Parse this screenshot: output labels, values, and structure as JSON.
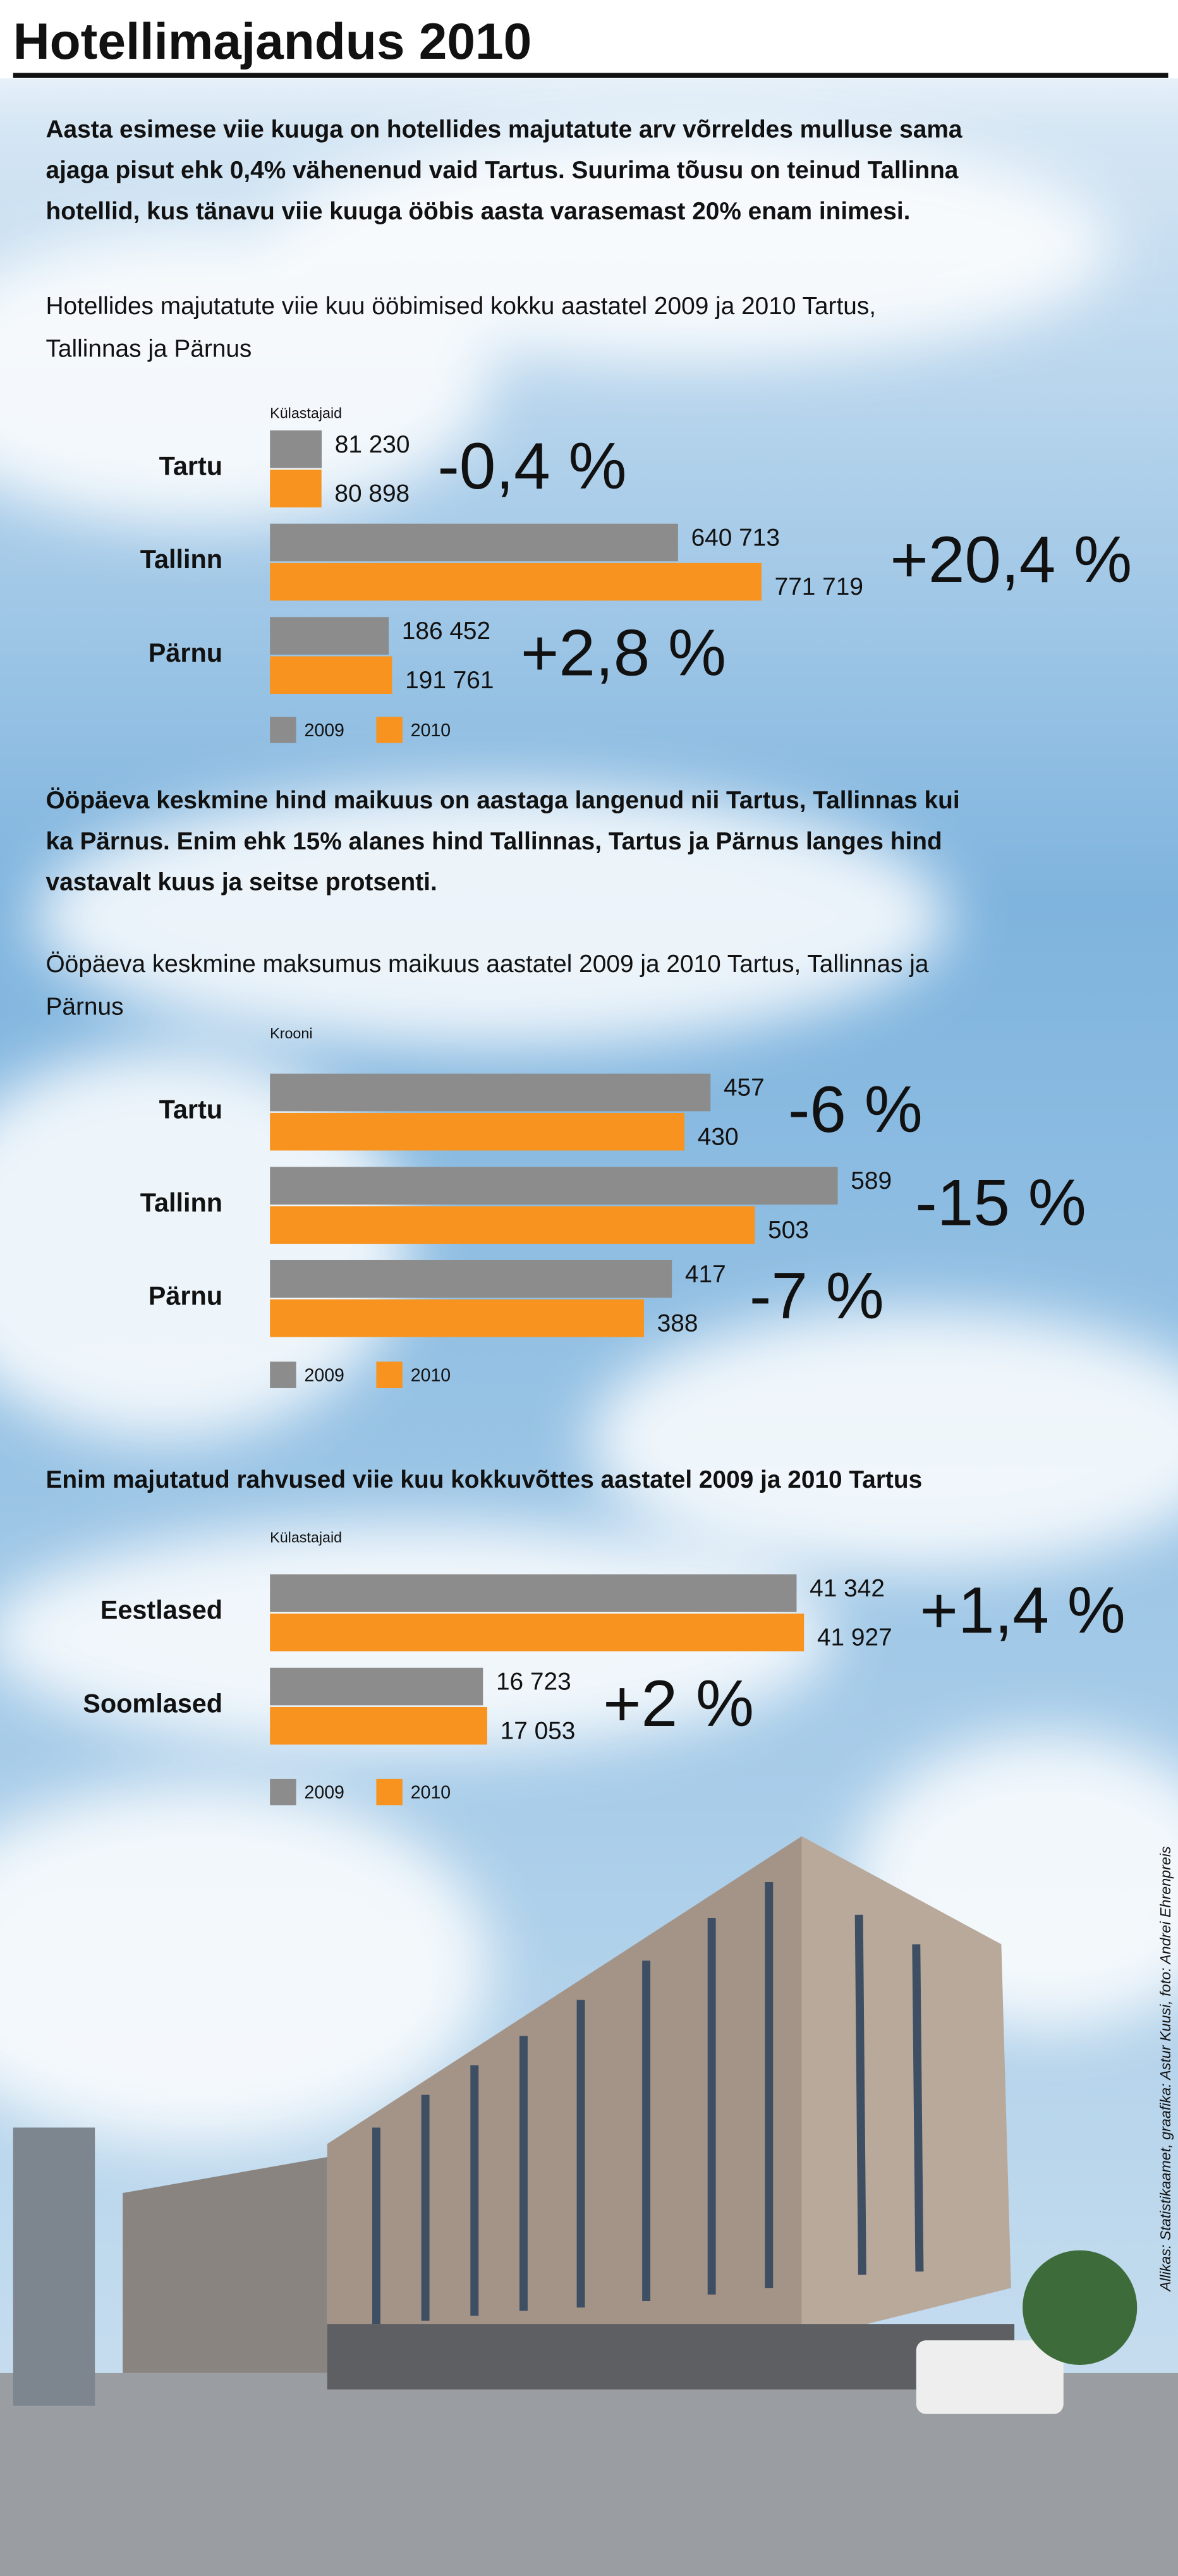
{
  "title": "Hotellimajandus 2010",
  "paragraphs": [
    [
      "Aasta esimese viie kuuga on hotellides majutatute arv võrreldes mulluse sama",
      "ajaga pisut ehk 0,4% vähenenud vaid Tartus. Suurima tõusu on teinud Tallinna",
      "hotellid, kus tänavu viie kuuga ööbis aasta varasemast 20% enam inimesi."
    ],
    [
      "Ööpäeva keskmine hind maikuus on aastaga langenud nii Tartus, Tallinnas kui",
      "ka Pärnus. Enim ehk 15% alanes hind Tallinnas, Tartus ja Pärnus langes hind",
      "vastavalt kuus ja seitse protsenti."
    ]
  ],
  "credit": "Allikas: Statistikaamet, graafika: Astur Kuusi, foto: Andrei Ehrenpreis",
  "chart_data": [
    {
      "type": "bar",
      "orientation": "horizontal",
      "title": [
        "Hotellides majutatute viie kuu ööbimised kokku aastatel 2009 ja 2010 Tartus,",
        "Tallinnas ja Pärnus"
      ],
      "unit": "Külastajaid",
      "categories": [
        "Tartu",
        "Tallinn",
        "Pärnu"
      ],
      "xlim": [
        0,
        1400000
      ],
      "series": [
        {
          "name": "2009",
          "color": "#8c8c8c",
          "values": [
            81230,
            640713,
            186452
          ],
          "value_labels": [
            "81 230",
            "640 713",
            "186 452"
          ]
        },
        {
          "name": "2010",
          "color": "#f7931e",
          "values": [
            80898,
            771719,
            191761
          ],
          "value_labels": [
            "80 898",
            "771 719",
            "191 761"
          ]
        }
      ],
      "annotations": [
        {
          "text": "-0,4 %",
          "color": "#d9323e"
        },
        {
          "text": "+20,4 %",
          "color": "#27a244"
        },
        {
          "text": "+2,8 %",
          "color": "#27a244"
        }
      ]
    },
    {
      "type": "bar",
      "orientation": "horizontal",
      "title": [
        "Ööpäeva keskmine maksumus maikuus aastatel 2009 ja 2010 Tartus, Tallinnas ja",
        "Pärnus"
      ],
      "unit": "Krooni",
      "categories": [
        "Tartu",
        "Tallinn",
        "Pärnu"
      ],
      "xlim": [
        0,
        925
      ],
      "series": [
        {
          "name": "2009",
          "color": "#8c8c8c",
          "values": [
            457,
            589,
            417
          ]
        },
        {
          "name": "2010",
          "color": "#f7931e",
          "values": [
            430,
            503,
            388
          ]
        }
      ],
      "annotations": [
        {
          "text": "-6 %",
          "color": "#d9323e"
        },
        {
          "text": "-15 %",
          "color": "#d9323e"
        },
        {
          "text": "-7 %",
          "color": "#d9323e"
        }
      ]
    },
    {
      "type": "bar",
      "orientation": "horizontal",
      "title": [
        "Enim majutatud rahvused viie kuu kokkuvõttes aastatel 2009 ja 2010 Tartus"
      ],
      "unit": "Külastajaid",
      "categories": [
        "Eestlased",
        "Soomlased"
      ],
      "xlim": [
        0,
        70000
      ],
      "series": [
        {
          "name": "2009",
          "color": "#8c8c8c",
          "values": [
            41342,
            16723
          ],
          "value_labels": [
            "41 342",
            "16 723"
          ]
        },
        {
          "name": "2010",
          "color": "#f7931e",
          "values": [
            41927,
            17053
          ],
          "value_labels": [
            "41 927",
            "17 053"
          ]
        }
      ],
      "annotations": [
        {
          "text": "+1,4 %",
          "color": "#27a244"
        },
        {
          "text": "+2 %",
          "color": "#27a244"
        }
      ]
    }
  ]
}
